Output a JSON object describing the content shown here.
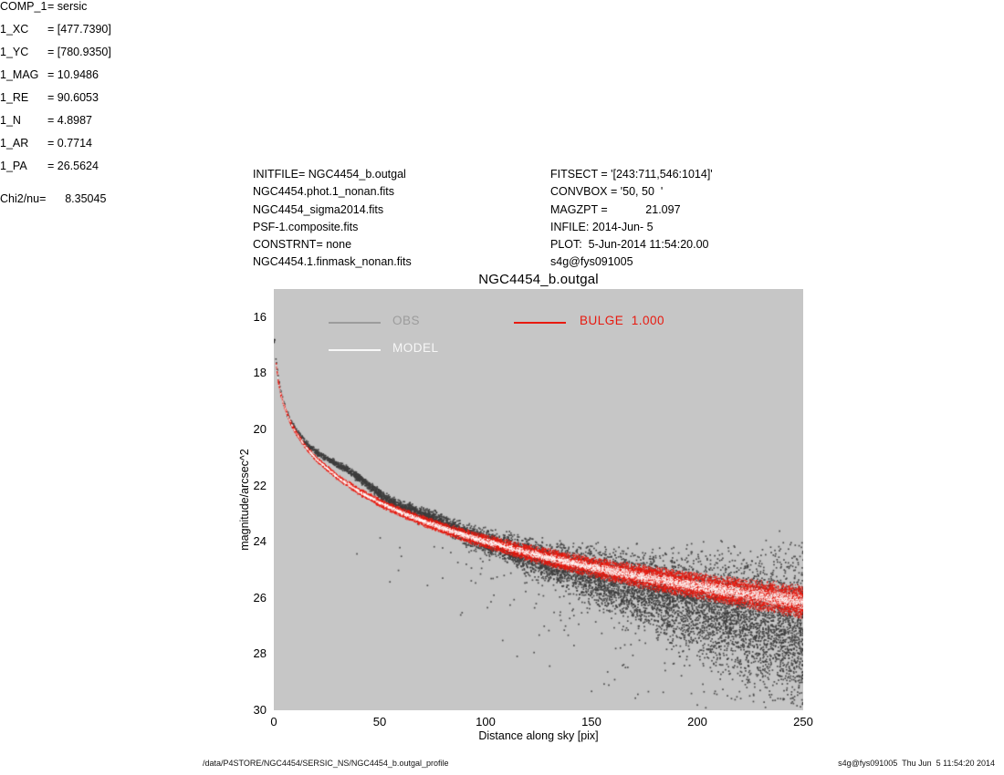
{
  "header": {
    "left_block": [
      "INITFILE= NGC4454_b.outgal",
      "NGC4454.phot.1_nonan.fits",
      "NGC4454_sigma2014.fits",
      "PSF-1.composite.fits",
      "CONSTRNT= none",
      "NGC4454.1.finmask_nonan.fits"
    ],
    "center_block": [
      "FITSECT = '[243:711,546:1014]'",
      "CONVBOX = '50, 50  '",
      "MAGZPT =            21.097",
      "INFILE: 2014-Jun- 5",
      "PLOT:  5-Jun-2014 11:54:20.00",
      "s4g@fys091005"
    ],
    "fit_params": [
      {
        "name": "COMP_1",
        "value": "= sersic"
      },
      {
        "name": "1_XC",
        "value": "= [477.7390]"
      },
      {
        "name": "1_YC",
        "value": "= [780.9350]"
      },
      {
        "name": "1_MAG",
        "value": "= 10.9486"
      },
      {
        "name": "1_RE",
        "value": "= 90.6053"
      },
      {
        "name": "1_N",
        "value": "= 4.8987"
      },
      {
        "name": "1_AR",
        "value": "= 0.7714"
      },
      {
        "name": "1_PA",
        "value": "= 26.5624"
      }
    ],
    "chi2_line": "Chi2/nu=      8.35045"
  },
  "chart_data": {
    "type": "scatter",
    "title": "NGC4454_b.outgal",
    "xlabel": "Distance along sky [pix]",
    "ylabel": "magnitude/arcsec^2",
    "xlim": [
      0,
      250
    ],
    "ylim": [
      30,
      15
    ],
    "y_axis_reversed": true,
    "x_ticks": [
      0,
      50,
      100,
      150,
      200,
      250
    ],
    "y_ticks": [
      16,
      18,
      20,
      22,
      24,
      26,
      28,
      30
    ],
    "plot_background": "#c6c6c6",
    "grid": false,
    "legend": [
      {
        "label": "OBS",
        "color": "#9c9c9c"
      },
      {
        "label": "MODEL",
        "color": "#f7f7f7"
      },
      {
        "label": "BULGE  1.000",
        "color": "#e8190f"
      }
    ],
    "sersic_fit": {
      "mu_e": 23.78,
      "re": 90.6053,
      "n": 4.8987,
      "mag_total": 10.9486
    },
    "model_profile": [
      [
        0.5,
        17.06
      ],
      [
        1,
        17.6
      ],
      [
        2,
        18.22
      ],
      [
        3,
        18.63
      ],
      [
        4,
        18.94
      ],
      [
        5,
        19.19
      ],
      [
        7,
        19.6
      ],
      [
        10,
        20.06
      ],
      [
        15,
        20.62
      ],
      [
        20,
        21.05
      ],
      [
        30,
        21.7
      ],
      [
        40,
        22.2
      ],
      [
        50,
        22.61
      ],
      [
        60,
        22.95
      ],
      [
        70,
        23.25
      ],
      [
        80,
        23.52
      ],
      [
        90.6,
        23.78
      ],
      [
        100,
        23.99
      ],
      [
        120,
        24.39
      ],
      [
        140,
        24.74
      ],
      [
        160,
        25.05
      ],
      [
        180,
        25.33
      ],
      [
        200,
        25.58
      ],
      [
        225,
        25.88
      ],
      [
        250,
        26.15
      ]
    ],
    "series": [
      {
        "name": "OBS",
        "kind": "point-cloud",
        "color": "#3c3c3c",
        "alpha": 0.88,
        "seed": 42,
        "count": 9000,
        "r_pow": 0.65,
        "dot": 1.7,
        "sigma0": 0.05,
        "sigma1": 1.25,
        "sigma_pow": 2.3,
        "bumps": [
          {
            "amp": -0.15,
            "center": 0,
            "width": 2.5
          },
          {
            "amp": -0.5,
            "center": 36,
            "width": 13
          },
          {
            "amp": -0.22,
            "center": 72,
            "width": 11
          }
        ],
        "drift": {
          "amp": 0.95,
          "start": 95,
          "scale": 155,
          "pow": 1.25
        },
        "faint_tail": {
          "prob": 0.2,
          "prob_pow": 1.6,
          "scale": 0.9
        }
      },
      {
        "name": "BULGE",
        "kind": "band",
        "color": "#e8190f",
        "alpha": 0.95,
        "seed": 7,
        "count": 15000,
        "r_pow": 0.72,
        "r_min": 1,
        "dot": 1.2,
        "hw0": 0.04,
        "hw1": 0.38,
        "hw_pow": 1.1,
        "spread": 1.5
      },
      {
        "name": "MODEL",
        "kind": "band-core",
        "color": "#ffffff",
        "alpha": 0.9,
        "seed": 13,
        "count": 5200,
        "r_pow": 0.72,
        "r_min": 1,
        "dot": 1.0,
        "hw_frac": 0.45
      }
    ]
  },
  "footer": {
    "left": "/data/P4STORE/NGC4454/SERSIC_NS/NGC4454_b.outgal_profile",
    "right": "s4g@fys091005  Thu Jun  5 11:54:20 2014"
  }
}
